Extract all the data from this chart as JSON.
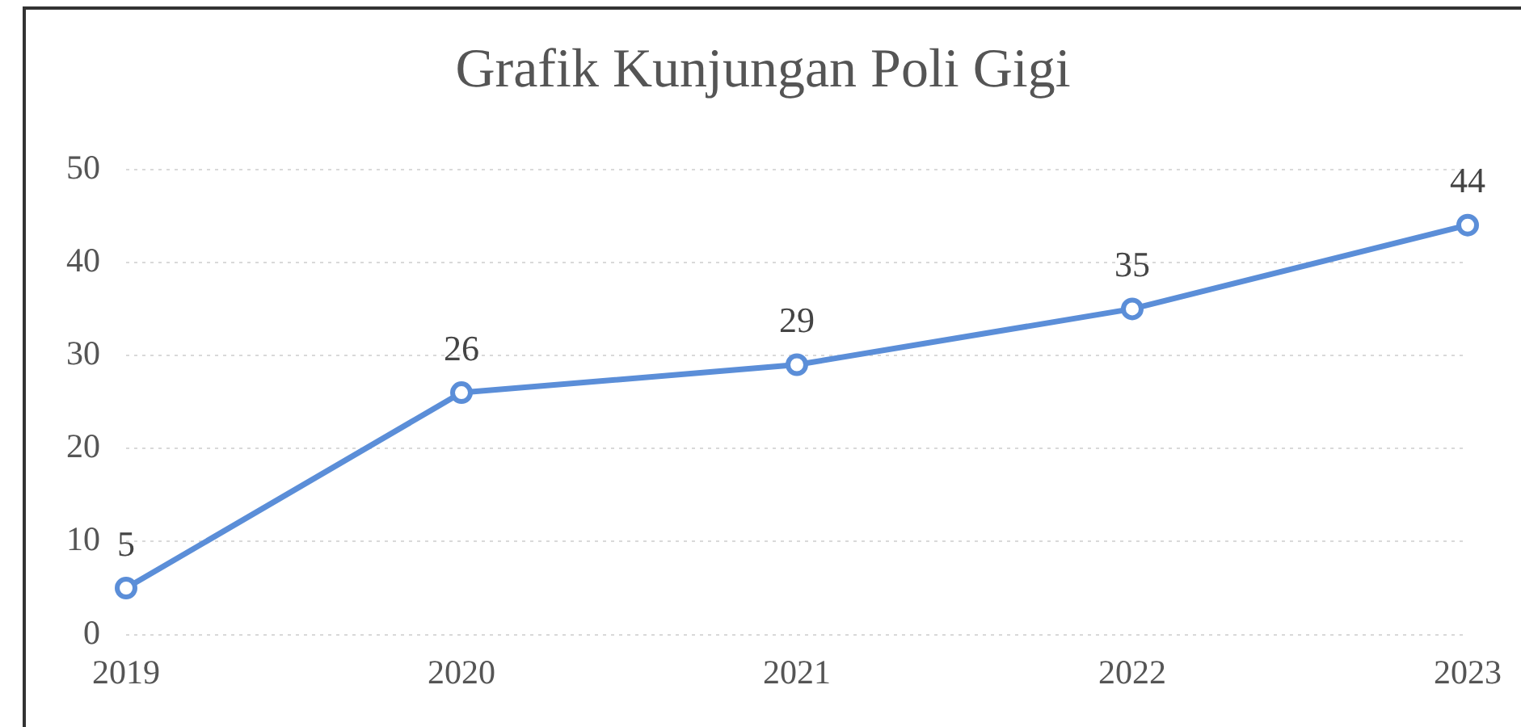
{
  "chart_data": {
    "type": "line",
    "title": "Grafik Kunjungan Poli Gigi",
    "categories": [
      "2019",
      "2020",
      "2021",
      "2022",
      "2023"
    ],
    "series": [
      {
        "color": "#5b8ed8",
        "values": [
          5,
          26,
          29,
          35,
          44
        ]
      }
    ],
    "ylim": [
      0,
      50
    ],
    "yticks": [
      0,
      10,
      20,
      30,
      40,
      50
    ],
    "grid": "y",
    "marker": "circle",
    "data_labels": true
  }
}
